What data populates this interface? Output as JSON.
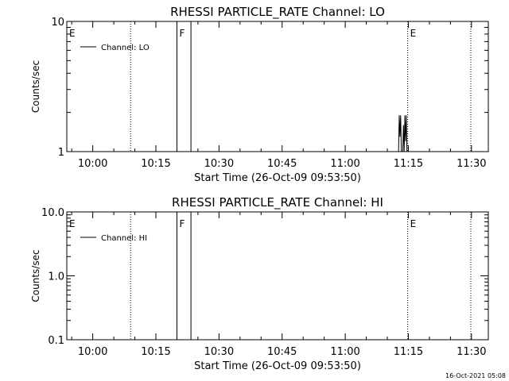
{
  "chart_data": [
    {
      "type": "line",
      "title": "RHESSI PARTICLE_RATE Channel: LO",
      "ylabel": "Counts/sec",
      "xlabel": "Start Time (26-Oct-09 09:53:50)",
      "y_scale": "log",
      "ylim": [
        1,
        10
      ],
      "xlim": [
        "09:53:50",
        "11:34:00"
      ],
      "x_tick_labels": [
        "10:00",
        "10:15",
        "10:30",
        "10:45",
        "11:00",
        "11:15",
        "11:30"
      ],
      "x_tick_values": [
        "10:00",
        "10:15",
        "10:30",
        "10:45",
        "11:00",
        "11:15",
        "11:30"
      ],
      "y_tick_labels": [
        "1",
        "10"
      ],
      "y_tick_values": [
        1,
        10
      ],
      "legend": [
        "Channel: LO"
      ],
      "legend_position": "top-left",
      "markers": [
        {
          "label": "E",
          "time": "09:53:50",
          "style": "dotted"
        },
        {
          "label": "",
          "time": "10:09:00",
          "style": "dotted"
        },
        {
          "label": "F",
          "time": "10:20:00",
          "style": "solid"
        },
        {
          "label": "",
          "time": "10:23:20",
          "style": "solid"
        },
        {
          "label": "E",
          "time": "11:14:50",
          "style": "dotted"
        },
        {
          "label": "",
          "time": "11:29:50",
          "style": "dotted"
        }
      ],
      "series": [
        {
          "values": [
            [
              "11:12:40",
              1.0
            ],
            [
              "11:12:50",
              1.9
            ],
            [
              "11:13:00",
              1.3
            ],
            [
              "11:13:10",
              1.9
            ],
            [
              "11:13:20",
              1.0
            ],
            [
              "11:13:40",
              1.0
            ],
            [
              "11:13:50",
              1.6
            ],
            [
              "11:14:00",
              1.0
            ],
            [
              "11:14:10",
              1.9
            ],
            [
              "11:14:20",
              1.2
            ],
            [
              "11:14:30",
              1.9
            ],
            [
              "11:14:40",
              1.0
            ]
          ]
        }
      ]
    },
    {
      "type": "line",
      "title": "RHESSI PARTICLE_RATE Channel: HI",
      "ylabel": "Counts/sec",
      "xlabel": "Start Time (26-Oct-09 09:53:50)",
      "y_scale": "log",
      "ylim": [
        0.1,
        10
      ],
      "xlim": [
        "09:53:50",
        "11:34:00"
      ],
      "x_tick_labels": [
        "10:00",
        "10:15",
        "10:30",
        "10:45",
        "11:00",
        "11:15",
        "11:30"
      ],
      "x_tick_values": [
        "10:00",
        "10:15",
        "10:30",
        "10:45",
        "11:00",
        "11:15",
        "11:30"
      ],
      "y_tick_labels": [
        "0.1",
        "1.0",
        "10.0"
      ],
      "y_tick_values": [
        0.1,
        1,
        10
      ],
      "legend": [
        "Channel: HI"
      ],
      "legend_position": "top-left",
      "markers": [
        {
          "label": "E",
          "time": "09:53:50",
          "style": "dotted"
        },
        {
          "label": "",
          "time": "10:09:00",
          "style": "dotted"
        },
        {
          "label": "F",
          "time": "10:20:00",
          "style": "solid"
        },
        {
          "label": "",
          "time": "10:23:20",
          "style": "solid"
        },
        {
          "label": "E",
          "time": "11:14:50",
          "style": "dotted"
        },
        {
          "label": "",
          "time": "11:29:50",
          "style": "dotted"
        }
      ],
      "series": []
    }
  ],
  "footer": {
    "timestamp": "16-Oct-2021 05:08"
  }
}
